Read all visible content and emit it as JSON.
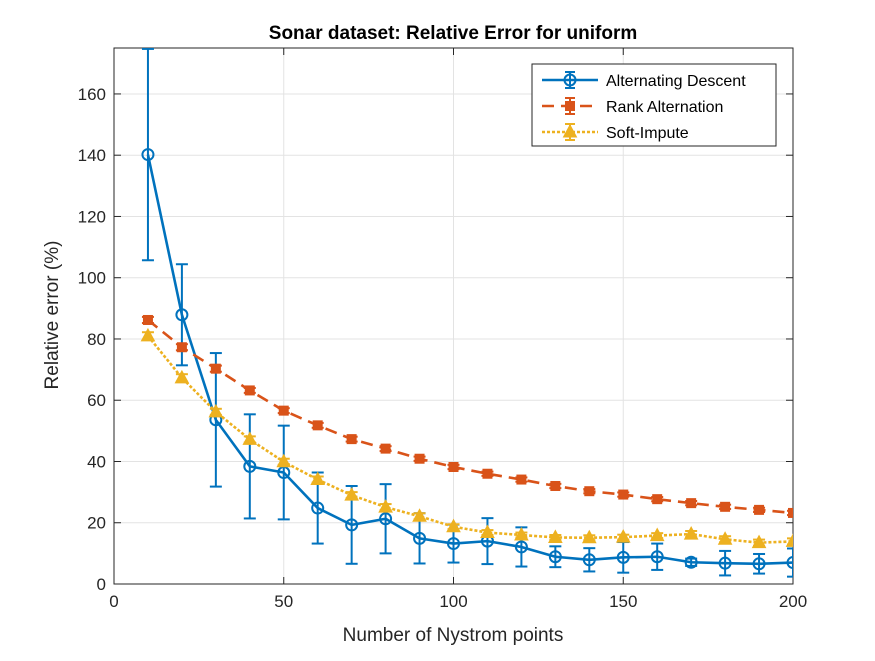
{
  "chart_data": {
    "type": "line",
    "title": "Sonar dataset: Relative Error for uniform",
    "xlabel": "Number of Nystrom points",
    "ylabel": "Relative error (%)",
    "xlim": [
      0,
      200
    ],
    "ylim": [
      0,
      175
    ],
    "xticks": [
      0,
      50,
      100,
      150,
      200
    ],
    "yticks": [
      0,
      20,
      40,
      60,
      80,
      100,
      120,
      140,
      160
    ],
    "grid": true,
    "legend_position": "top-right",
    "x": [
      10,
      20,
      30,
      40,
      50,
      60,
      70,
      80,
      90,
      100,
      110,
      120,
      130,
      140,
      150,
      160,
      170,
      180,
      190,
      200
    ],
    "series": [
      {
        "name": "Alternating Descent",
        "color": "#0072BD",
        "line_style": "solid",
        "marker": "circle",
        "values": [
          140.2,
          87.9,
          53.6,
          38.4,
          36.4,
          24.8,
          19.3,
          21.3,
          14.9,
          13.2,
          14.0,
          12.1,
          8.9,
          7.9,
          8.7,
          8.9,
          7.1,
          6.8,
          6.6,
          7.0
        ],
        "error": [
          34.5,
          16.5,
          21.8,
          17.0,
          15.3,
          11.6,
          12.7,
          11.3,
          8.2,
          6.2,
          7.5,
          6.4,
          3.4,
          3.8,
          5.0,
          4.3,
          1.2,
          4.0,
          3.2,
          4.6
        ]
      },
      {
        "name": "Rank Alternation",
        "color": "#D95319",
        "line_style": "dashed",
        "marker": "square",
        "values": [
          86.2,
          77.3,
          70.3,
          63.2,
          56.6,
          51.8,
          47.3,
          44.2,
          40.9,
          38.2,
          36.0,
          34.1,
          32.0,
          30.3,
          29.2,
          27.7,
          26.4,
          25.2,
          24.2,
          23.2
        ],
        "error": [
          1.0,
          1.0,
          1.0,
          0.8,
          0.8,
          0.8,
          0.8,
          0.8,
          0.7,
          0.7,
          0.7,
          0.7,
          0.7,
          0.7,
          0.7,
          0.7,
          0.7,
          0.7,
          0.7,
          0.7
        ]
      },
      {
        "name": "Soft-Impute",
        "color": "#EDB120",
        "line_style": "dotted",
        "marker": "triangle",
        "values": [
          81.0,
          67.3,
          56.2,
          47.2,
          39.9,
          34.1,
          29.0,
          25.1,
          22.1,
          18.7,
          16.8,
          16.0,
          15.2,
          15.1,
          15.3,
          15.8,
          16.3,
          14.6,
          13.5,
          13.9
        ],
        "error": [
          1.2,
          1.2,
          1.0,
          1.0,
          1.0,
          1.0,
          1.0,
          1.0,
          1.0,
          0.8,
          0.8,
          0.8,
          0.8,
          0.8,
          0.8,
          0.8,
          1.0,
          1.0,
          1.0,
          1.0
        ]
      }
    ]
  }
}
